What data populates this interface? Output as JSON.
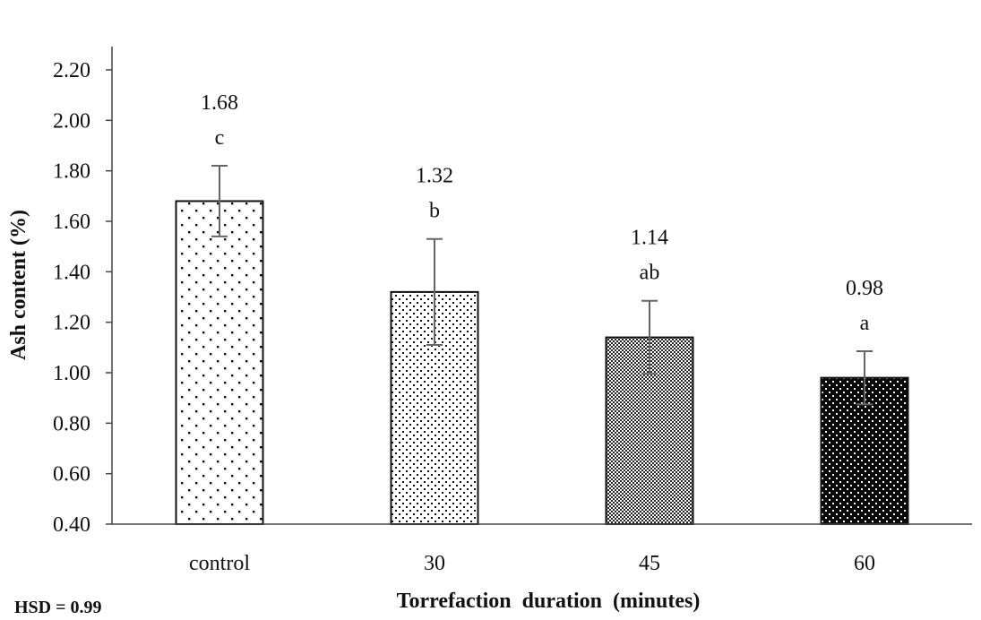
{
  "chart_data": {
    "type": "bar",
    "categories": [
      "control",
      "30",
      "45",
      "60"
    ],
    "values": [
      1.68,
      1.32,
      1.14,
      0.98
    ],
    "error_bars": [
      0.14,
      0.21,
      0.145,
      0.105
    ],
    "value_labels": [
      "1.68",
      "1.32",
      "1.14",
      "0.98"
    ],
    "group_letters": [
      "c",
      "b",
      "ab",
      "a"
    ],
    "fill_patterns": [
      "sparse-dots",
      "medium-dots",
      "dense-checker",
      "dark-dots"
    ],
    "title": "",
    "xlabel": "Torrefaction  duration  (minutes)",
    "ylabel": "Ash content (%)",
    "ylim": [
      0.4,
      2.2
    ],
    "yticks": [
      "0.40",
      "0.60",
      "0.80",
      "1.00",
      "1.20",
      "1.40",
      "1.60",
      "1.80",
      "2.00",
      "2.20"
    ],
    "grid": false,
    "legend": "none",
    "note": "HSD = 0.99"
  }
}
